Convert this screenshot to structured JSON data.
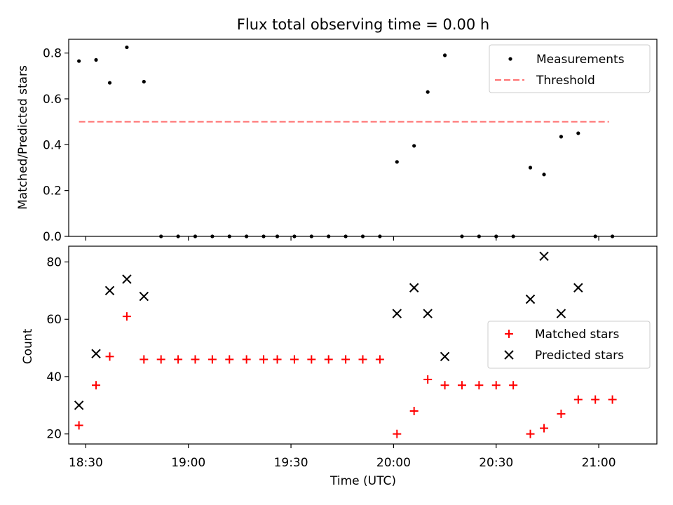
{
  "title": "Flux total observing time = 0.00 h",
  "colors": {
    "measure": "#000000",
    "threshold": "#ff7070",
    "matched": "#ff0000",
    "predicted": "#000000"
  },
  "chart_data": [
    {
      "type": "scatter",
      "ylabel": "Matched/Predicted stars",
      "ylim": [
        0,
        0.86
      ],
      "yticks": [
        "0.0",
        "0.2",
        "0.4",
        "0.6",
        "0.8"
      ],
      "xlim_min": [
        1105,
        1277
      ],
      "legend": {
        "placement": "top-right",
        "entries": [
          "Measurements",
          "Threshold"
        ]
      },
      "threshold": {
        "value": 0.5,
        "x_range_min": [
          1108,
          1263
        ]
      },
      "series": [
        {
          "name": "Measurements",
          "x_min": [
            1108,
            1113,
            1117,
            1122,
            1127,
            1132,
            1137,
            1142,
            1147,
            1152,
            1157,
            1162,
            1166,
            1171,
            1176,
            1181,
            1186,
            1191,
            1196,
            1201,
            1206,
            1210,
            1215,
            1220,
            1225,
            1230,
            1235,
            1240,
            1244,
            1249,
            1254,
            1259,
            1264
          ],
          "values": [
            0.765,
            0.77,
            0.67,
            0.825,
            0.675,
            0,
            0,
            0,
            0,
            0,
            0,
            0,
            0,
            0,
            0,
            0,
            0,
            0,
            0,
            0.325,
            0.395,
            0.63,
            0.79,
            0,
            0,
            0,
            0,
            0.3,
            0.27,
            0.435,
            0.45,
            0,
            0
          ]
        }
      ]
    },
    {
      "type": "scatter",
      "xlabel": "Time (UTC)",
      "ylabel": "Count",
      "ylim": [
        16.5,
        85.5
      ],
      "yticks": [
        "20",
        "40",
        "60",
        "80"
      ],
      "xlim_min": [
        1105,
        1277
      ],
      "xticks": [
        "18:30",
        "19:00",
        "19:30",
        "20:00",
        "20:30",
        "21:00"
      ],
      "xtick_min": [
        1110,
        1140,
        1170,
        1200,
        1230,
        1260
      ],
      "legend": {
        "placement": "center-right",
        "entries": [
          "Matched stars",
          "Predicted stars"
        ]
      },
      "series": [
        {
          "name": "Matched stars",
          "x_min": [
            1108,
            1113,
            1117,
            1122,
            1127,
            1132,
            1137,
            1142,
            1147,
            1152,
            1157,
            1162,
            1166,
            1171,
            1176,
            1181,
            1186,
            1191,
            1196,
            1201,
            1206,
            1210,
            1215,
            1220,
            1225,
            1230,
            1235,
            1240,
            1244,
            1249,
            1254,
            1259,
            1264
          ],
          "values": [
            23,
            37,
            47,
            61,
            46,
            46,
            46,
            46,
            46,
            46,
            46,
            46,
            46,
            46,
            46,
            46,
            46,
            46,
            46,
            20,
            28,
            39,
            37,
            37,
            37,
            37,
            37,
            20,
            22,
            27,
            32,
            32,
            32
          ]
        },
        {
          "name": "Predicted stars",
          "x_min": [
            1108,
            1113,
            1117,
            1122,
            1127,
            1201,
            1206,
            1210,
            1215,
            1240,
            1244,
            1249,
            1254
          ],
          "values": [
            30,
            48,
            70,
            74,
            68,
            62,
            71,
            62,
            47,
            67,
            82,
            62,
            71
          ]
        }
      ]
    }
  ]
}
